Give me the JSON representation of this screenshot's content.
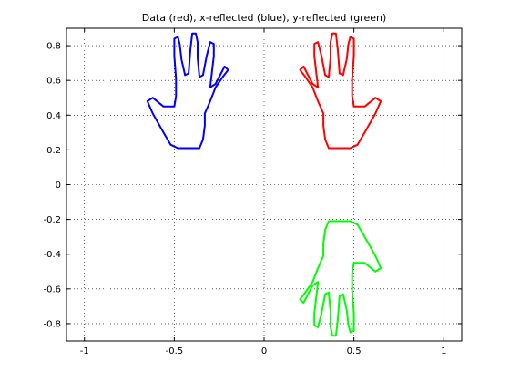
{
  "chart_data": {
    "type": "line",
    "title": "Data (red), x-reflected (blue), y-reflected (green)",
    "xlabel": "",
    "ylabel": "",
    "xlim": [
      -1.1,
      1.1
    ],
    "ylim": [
      -0.9,
      0.9
    ],
    "grid": true,
    "x_ticks": [
      -1,
      -0.5,
      0,
      0.5,
      1
    ],
    "x_tick_labels": [
      "-1",
      "-0.5",
      "0",
      "0.5",
      "1"
    ],
    "y_ticks": [
      -0.8,
      -0.6,
      -0.4,
      -0.2,
      0,
      0.2,
      0.4,
      0.6,
      0.8
    ],
    "y_tick_labels": [
      "-0.8",
      "-0.6",
      "-0.4",
      "-0.2",
      "0",
      "0.2",
      "0.4",
      "0.6",
      "0.8"
    ],
    "colors": {
      "red": "#ff0000",
      "blue": "#0000ff",
      "green": "#00ff00"
    },
    "base_hand": [
      [
        0.48,
        0.21
      ],
      [
        0.43,
        0.21
      ],
      [
        0.36,
        0.21
      ],
      [
        0.34,
        0.26
      ],
      [
        0.33,
        0.34
      ],
      [
        0.33,
        0.41
      ],
      [
        0.3,
        0.48
      ],
      [
        0.27,
        0.56
      ],
      [
        0.23,
        0.62
      ],
      [
        0.2,
        0.66
      ],
      [
        0.22,
        0.68
      ],
      [
        0.24,
        0.64
      ],
      [
        0.27,
        0.58
      ],
      [
        0.3,
        0.56
      ],
      [
        0.29,
        0.65
      ],
      [
        0.28,
        0.74
      ],
      [
        0.28,
        0.81
      ],
      [
        0.3,
        0.82
      ],
      [
        0.32,
        0.74
      ],
      [
        0.34,
        0.63
      ],
      [
        0.36,
        0.62
      ],
      [
        0.37,
        0.73
      ],
      [
        0.37,
        0.82
      ],
      [
        0.38,
        0.87
      ],
      [
        0.4,
        0.87
      ],
      [
        0.41,
        0.78
      ],
      [
        0.42,
        0.64
      ],
      [
        0.44,
        0.63
      ],
      [
        0.46,
        0.72
      ],
      [
        0.47,
        0.81
      ],
      [
        0.48,
        0.85
      ],
      [
        0.5,
        0.84
      ],
      [
        0.5,
        0.74
      ],
      [
        0.49,
        0.61
      ],
      [
        0.49,
        0.51
      ],
      [
        0.5,
        0.45
      ],
      [
        0.56,
        0.45
      ],
      [
        0.62,
        0.5
      ],
      [
        0.65,
        0.48
      ],
      [
        0.62,
        0.41
      ],
      [
        0.56,
        0.3
      ],
      [
        0.52,
        0.23
      ],
      [
        0.48,
        0.21
      ]
    ]
  }
}
